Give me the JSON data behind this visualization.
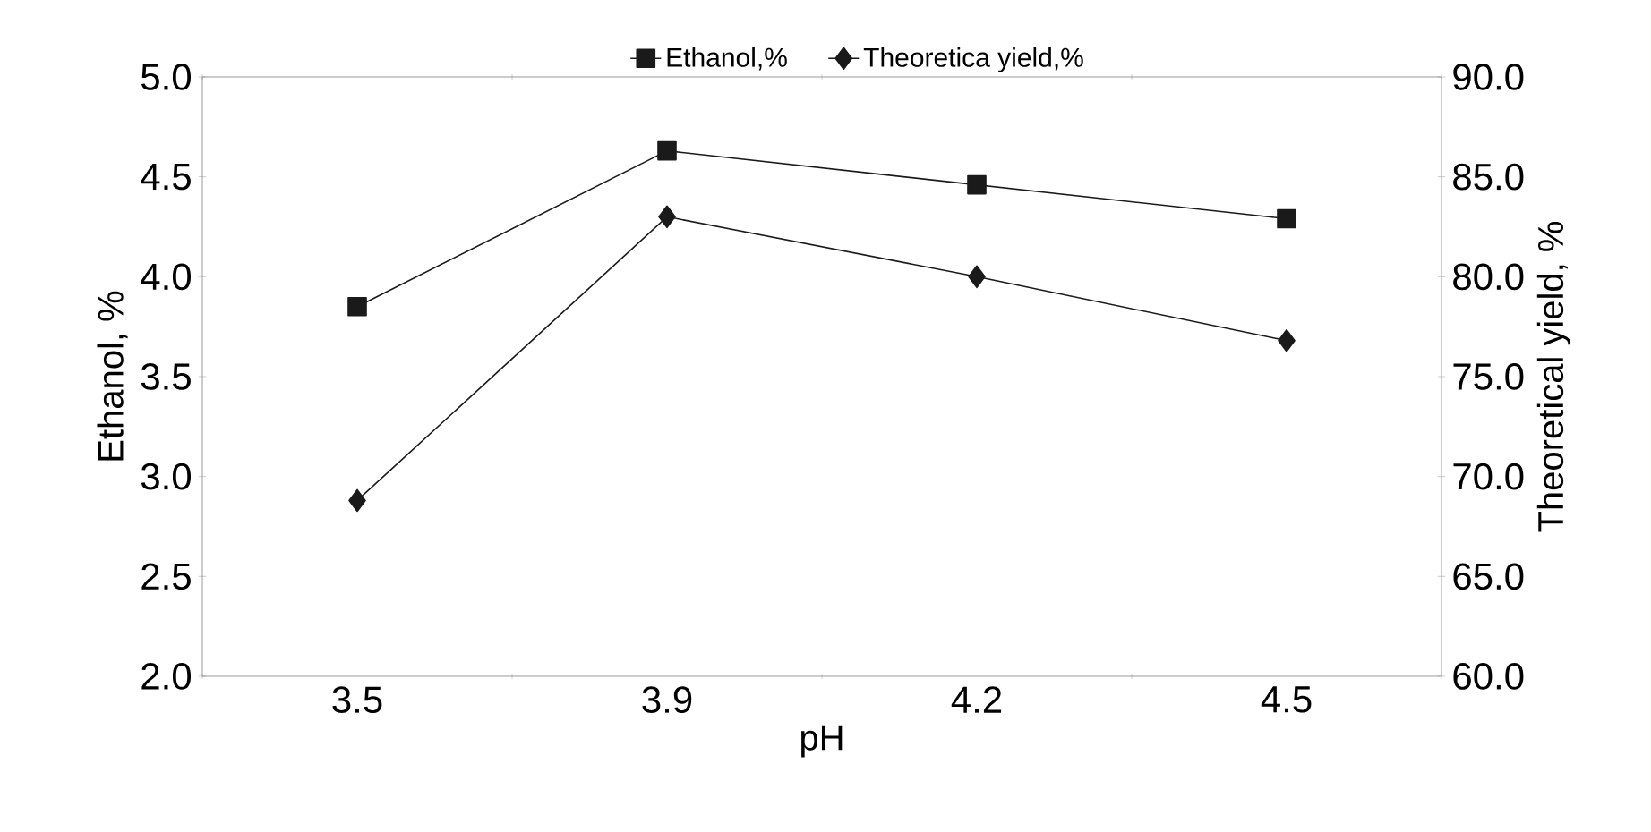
{
  "chart_data": {
    "type": "line",
    "xlabel": "pH",
    "ylabel": "Ethanol, %",
    "y2label": "Theoretical yield, %",
    "categories": [
      "3.5",
      "3.9",
      "4.2",
      "4.5"
    ],
    "series": [
      {
        "name": "Ethanol,%",
        "color": "#1a1a1a",
        "marker": "square",
        "values": [
          3.85,
          4.63,
          4.46,
          4.29
        ]
      },
      {
        "name": "Theoretica yield,%",
        "color": "#1a1a1a",
        "marker": "diamond",
        "axis": "y2",
        "values": [
          68.8,
          83.0,
          80.0,
          76.8
        ]
      }
    ],
    "ylim": [
      2,
      5
    ],
    "yticks": [
      {
        "value": 2,
        "label": "2.0"
      },
      {
        "value": 2.5,
        "label": "2.5"
      },
      {
        "value": 3,
        "label": "3.0"
      },
      {
        "value": 3.5,
        "label": "3.5"
      },
      {
        "value": 4,
        "label": "4.0"
      },
      {
        "value": 4.5,
        "label": "4.5"
      },
      {
        "value": 5,
        "label": "5.0"
      }
    ],
    "y2lim": [
      60,
      90
    ],
    "y2ticks": [
      {
        "value": 60,
        "label": "60.0"
      },
      {
        "value": 65,
        "label": "65.0"
      },
      {
        "value": 70,
        "label": "70.0"
      },
      {
        "value": 75,
        "label": "75.0"
      },
      {
        "value": 80,
        "label": "80.0"
      },
      {
        "value": 85,
        "label": "85.0"
      },
      {
        "value": 90,
        "label": "90.0"
      }
    ],
    "legend": "top",
    "grid": false,
    "line_style": "solid"
  }
}
